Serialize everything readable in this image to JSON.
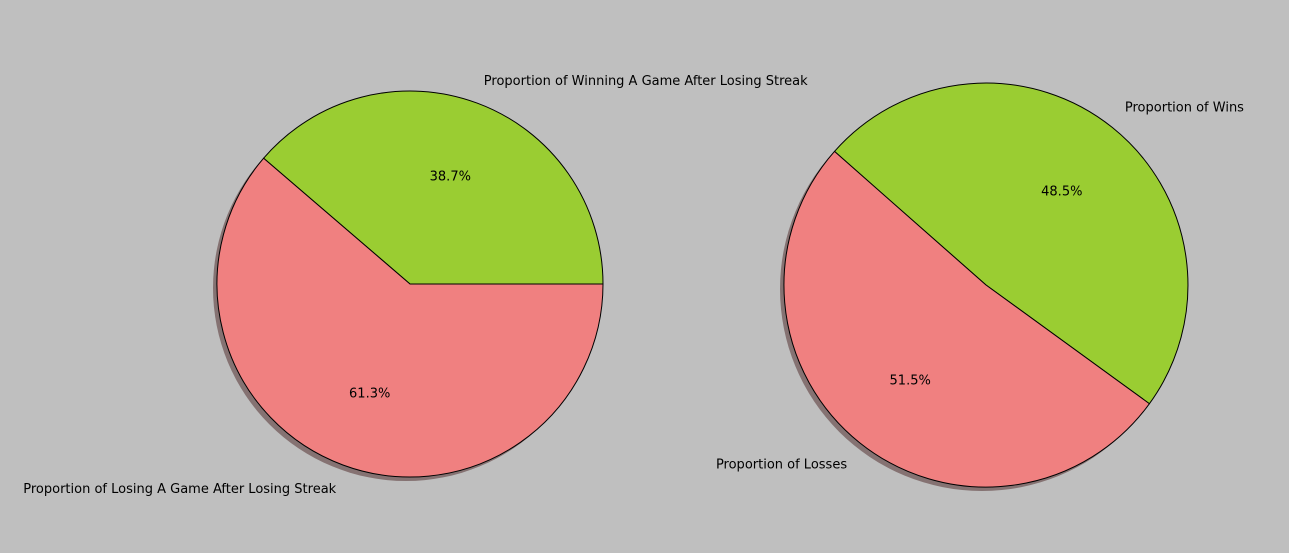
{
  "figure": {
    "background": "#bfbfbf"
  },
  "chart_data": [
    {
      "type": "pie",
      "title": "",
      "labels": [
        "Proportion of Winning A Game After Losing Streak",
        "Proportion of Losing A Game After Losing Streak"
      ],
      "values": [
        38.7,
        61.3
      ],
      "autopct": [
        "38.7%",
        "61.3%"
      ],
      "colors": [
        "#9acd32",
        "#f08080"
      ],
      "start_angle_deg": 0,
      "shadow": true,
      "edge_color": "#000000",
      "legend": "none"
    },
    {
      "type": "pie",
      "title": "",
      "labels": [
        "Proportion of Wins",
        "Proportion of Losses"
      ],
      "values": [
        48.5,
        51.5
      ],
      "autopct": [
        "48.5%",
        "51.5%"
      ],
      "colors": [
        "#9acd32",
        "#f08080"
      ],
      "start_angle_deg": -36,
      "shadow": true,
      "edge_color": "#000000",
      "legend": "none"
    }
  ]
}
